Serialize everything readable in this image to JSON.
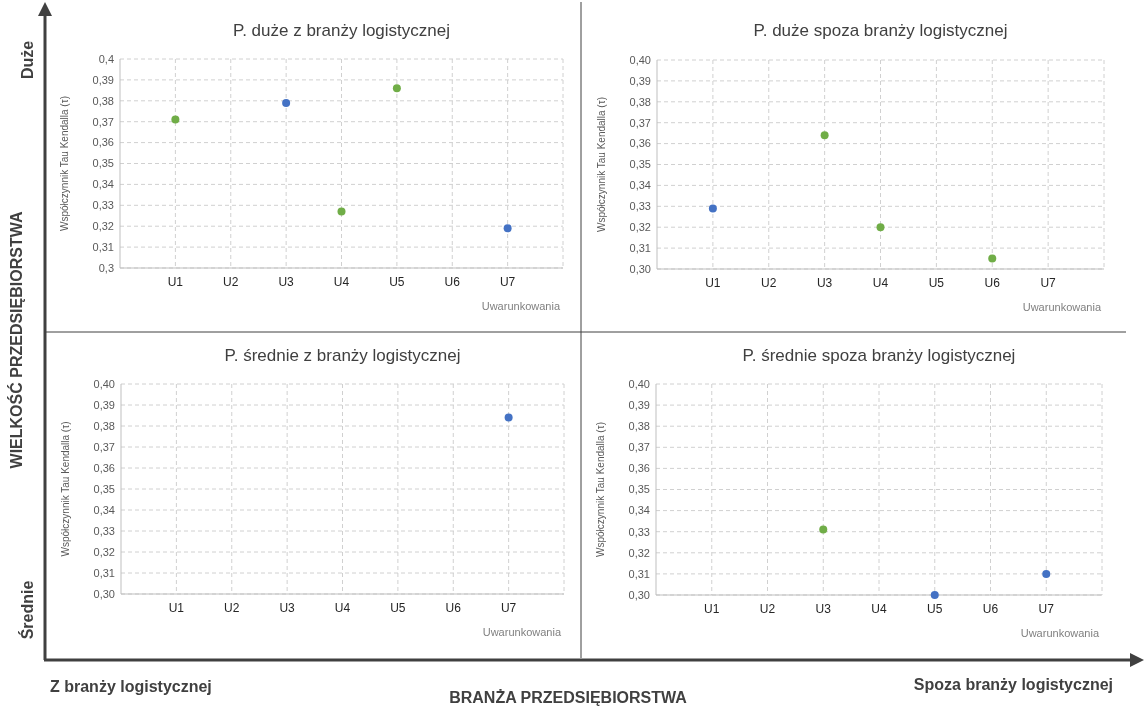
{
  "chart_data": [
    {
      "type": "scatter",
      "title": "P. duże z branży logistycznej",
      "xlabel": "Uwarunkowania",
      "ylabel": "Współczynnik Tau Kendalla (τ)",
      "categories": [
        "U1",
        "U2",
        "U3",
        "U4",
        "U5",
        "U6",
        "U7"
      ],
      "marker": "circle",
      "grid": true,
      "ylim": [
        0.3,
        0.4
      ],
      "yticks": [
        {
          "value": 0.3,
          "label": "0,3"
        },
        {
          "value": 0.31,
          "label": "0,31"
        },
        {
          "value": 0.32,
          "label": "0,32"
        },
        {
          "value": 0.33,
          "label": "0,33"
        },
        {
          "value": 0.34,
          "label": "0,34"
        },
        {
          "value": 0.35,
          "label": "0,35"
        },
        {
          "value": 0.36,
          "label": "0,36"
        },
        {
          "value": 0.37,
          "label": "0,37"
        },
        {
          "value": 0.38,
          "label": "0,38"
        },
        {
          "value": 0.39,
          "label": "0,39"
        },
        {
          "value": 0.4,
          "label": "0,4"
        }
      ],
      "series": [
        {
          "color": "#70ad47",
          "values": [
            0.371,
            null,
            null,
            0.327,
            0.386,
            null,
            null
          ]
        },
        {
          "color": "#4472c4",
          "values": [
            null,
            null,
            0.379,
            null,
            null,
            null,
            0.319
          ]
        }
      ]
    },
    {
      "type": "scatter",
      "title": "P. duże spoza branży logistycznej",
      "xlabel": "Uwarunkowania",
      "ylabel": "Współczynnik Tau Kendalla (τ)",
      "categories": [
        "U1",
        "U2",
        "U3",
        "U4",
        "U5",
        "U6",
        "U7"
      ],
      "marker": "circle",
      "grid": true,
      "ylim": [
        0.3,
        0.4
      ],
      "yticks": [
        {
          "value": 0.3,
          "label": "0,30"
        },
        {
          "value": 0.31,
          "label": "0,31"
        },
        {
          "value": 0.32,
          "label": "0,32"
        },
        {
          "value": 0.33,
          "label": "0,33"
        },
        {
          "value": 0.34,
          "label": "0,34"
        },
        {
          "value": 0.35,
          "label": "0,35"
        },
        {
          "value": 0.36,
          "label": "0,36"
        },
        {
          "value": 0.37,
          "label": "0,37"
        },
        {
          "value": 0.38,
          "label": "0,38"
        },
        {
          "value": 0.39,
          "label": "0,39"
        },
        {
          "value": 0.4,
          "label": "0,40"
        }
      ],
      "series": [
        {
          "color": "#70ad47",
          "values": [
            null,
            null,
            0.364,
            0.32,
            null,
            0.305,
            null
          ]
        },
        {
          "color": "#4472c4",
          "values": [
            0.329,
            null,
            null,
            null,
            null,
            null,
            null
          ]
        }
      ]
    },
    {
      "type": "scatter",
      "title": "P. średnie z branży logistycznej",
      "xlabel": "Uwarunkowania",
      "ylabel": "Współczynnik Tau Kendalla (τ)",
      "categories": [
        "U1",
        "U2",
        "U3",
        "U4",
        "U5",
        "U6",
        "U7"
      ],
      "marker": "circle",
      "grid": true,
      "ylim": [
        0.3,
        0.4
      ],
      "yticks": [
        {
          "value": 0.3,
          "label": "0,30"
        },
        {
          "value": 0.31,
          "label": "0,31"
        },
        {
          "value": 0.32,
          "label": "0,32"
        },
        {
          "value": 0.33,
          "label": "0,33"
        },
        {
          "value": 0.34,
          "label": "0,34"
        },
        {
          "value": 0.35,
          "label": "0,35"
        },
        {
          "value": 0.36,
          "label": "0,36"
        },
        {
          "value": 0.37,
          "label": "0,37"
        },
        {
          "value": 0.38,
          "label": "0,38"
        },
        {
          "value": 0.39,
          "label": "0,39"
        },
        {
          "value": 0.4,
          "label": "0,40"
        }
      ],
      "series": [
        {
          "color": "#4472c4",
          "values": [
            null,
            null,
            null,
            null,
            null,
            null,
            0.384
          ]
        }
      ]
    },
    {
      "type": "scatter",
      "title": "P. średnie spoza branży logistycznej",
      "xlabel": "Uwarunkowania",
      "ylabel": "Współczynnik Tau Kendalla (τ)",
      "categories": [
        "U1",
        "U2",
        "U3",
        "U4",
        "U5",
        "U6",
        "U7"
      ],
      "marker": "circle",
      "grid": true,
      "ylim": [
        0.3,
        0.4
      ],
      "yticks": [
        {
          "value": 0.3,
          "label": "0,30"
        },
        {
          "value": 0.31,
          "label": "0,31"
        },
        {
          "value": 0.32,
          "label": "0,32"
        },
        {
          "value": 0.33,
          "label": "0,33"
        },
        {
          "value": 0.34,
          "label": "0,34"
        },
        {
          "value": 0.35,
          "label": "0,35"
        },
        {
          "value": 0.36,
          "label": "0,36"
        },
        {
          "value": 0.37,
          "label": "0,37"
        },
        {
          "value": 0.38,
          "label": "0,38"
        },
        {
          "value": 0.39,
          "label": "0,39"
        },
        {
          "value": 0.4,
          "label": "0,40"
        }
      ],
      "series": [
        {
          "color": "#70ad47",
          "values": [
            null,
            null,
            0.331,
            null,
            null,
            null,
            null
          ]
        },
        {
          "color": "#4472c4",
          "values": [
            null,
            null,
            null,
            null,
            0.3,
            null,
            0.31
          ]
        }
      ]
    },
    {
      "type": "other",
      "xlabel": "BRANŻA PRZEDSIĘBIORSTWA",
      "ylabel": "WIELKOŚĆ PRZEDSIĘBIORSTWA",
      "annotations": [
        "Duże",
        "Średnie",
        "Z branży logistycznej",
        "Spoza branży logistycznej"
      ]
    }
  ]
}
